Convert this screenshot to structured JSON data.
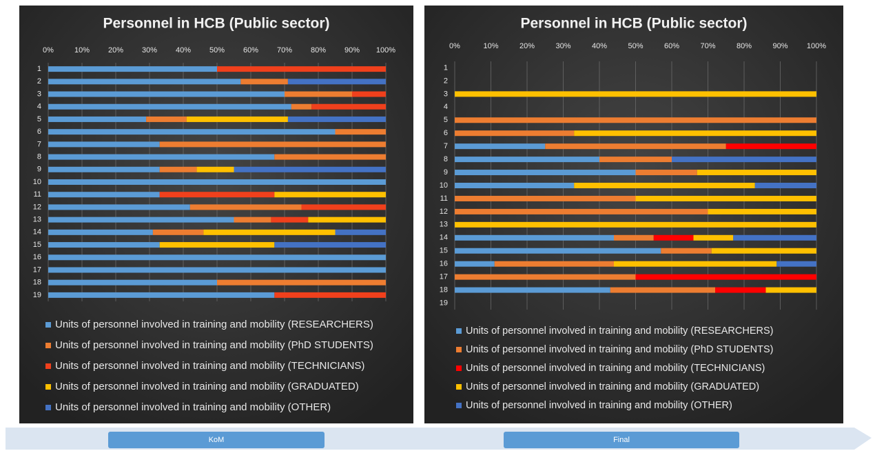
{
  "chart_data": [
    {
      "type": "bar",
      "orientation": "horizontal",
      "stacked": true,
      "title": "Personnel in HCB (Public sector)",
      "categories": [
        "1",
        "2",
        "3",
        "4",
        "5",
        "6",
        "7",
        "8",
        "9",
        "10",
        "11",
        "12",
        "13",
        "14",
        "15",
        "16",
        "17",
        "18",
        "19"
      ],
      "series": [
        {
          "name": "Units of personnel involved in training and mobility (RESEARCHERS)",
          "color": "#5b9bd5",
          "values": [
            50,
            57,
            70,
            72,
            29,
            85,
            33,
            67,
            33,
            100,
            33,
            42,
            55,
            31,
            33,
            100,
            100,
            50,
            67
          ]
        },
        {
          "name": "Units of personnel involved in training and mobility (PhD STUDENTS)",
          "color": "#ed7d31",
          "values": [
            0,
            14,
            20,
            6,
            12,
            15,
            67,
            33,
            11,
            0,
            0,
            33,
            11,
            15,
            0,
            0,
            0,
            50,
            0
          ]
        },
        {
          "name": "Units of personnel involved in training and mobility (TECHNICIANS)",
          "color": "#f0401c",
          "values": [
            50,
            0,
            10,
            22,
            0,
            0,
            0,
            0,
            0,
            0,
            34,
            25,
            11,
            0,
            0,
            0,
            0,
            0,
            33
          ]
        },
        {
          "name": "Units of personnel involved in training and mobility (GRADUATED)",
          "color": "#ffc000",
          "values": [
            0,
            0,
            0,
            0,
            30,
            0,
            0,
            0,
            11,
            0,
            33,
            0,
            23,
            39,
            34,
            0,
            0,
            0,
            0
          ]
        },
        {
          "name": "Units of personnel involved in training and mobility (OTHER)",
          "color": "#4472c4",
          "values": [
            0,
            29,
            0,
            0,
            29,
            0,
            0,
            0,
            45,
            0,
            0,
            0,
            0,
            15,
            33,
            0,
            0,
            0,
            0
          ]
        }
      ],
      "xlim": [
        0,
        100
      ],
      "xticks": [
        {
          "value": 0,
          "label": "0%"
        },
        {
          "value": 10,
          "label": "10%"
        },
        {
          "value": 20,
          "label": "20%"
        },
        {
          "value": 30,
          "label": "30%"
        },
        {
          "value": 40,
          "label": "40%"
        },
        {
          "value": 50,
          "label": "50%"
        },
        {
          "value": 60,
          "label": "60%"
        },
        {
          "value": 70,
          "label": "70%"
        },
        {
          "value": 80,
          "label": "80%"
        },
        {
          "value": 90,
          "label": "90%"
        },
        {
          "value": 100,
          "label": "100%"
        }
      ],
      "grid": true,
      "legend": "bottom"
    },
    {
      "type": "bar",
      "orientation": "horizontal",
      "stacked": true,
      "title": "Personnel in HCB (Public sector)",
      "categories": [
        "1",
        "2",
        "3",
        "4",
        "5",
        "6",
        "7",
        "8",
        "9",
        "10",
        "11",
        "12",
        "13",
        "14",
        "15",
        "16",
        "17",
        "18",
        "19"
      ],
      "series": [
        {
          "name": "Units of personnel involved in training and mobility (RESEARCHERS)",
          "color": "#5b9bd5",
          "values": [
            0,
            0,
            0,
            0,
            0,
            0,
            25,
            40,
            50,
            33,
            0,
            0,
            0,
            44,
            57,
            11,
            0,
            43,
            0
          ]
        },
        {
          "name": "Units of personnel involved in training and mobility (PhD STUDENTS)",
          "color": "#ed7d31",
          "values": [
            0,
            0,
            0,
            0,
            100,
            33,
            50,
            20,
            17,
            0,
            50,
            70,
            0,
            11,
            14,
            33,
            50,
            29,
            0
          ]
        },
        {
          "name": "Units of personnel involved in training and mobility (TECHNICIANS)",
          "color": "#ff0000",
          "values": [
            0,
            0,
            0,
            0,
            0,
            0,
            25,
            0,
            0,
            0,
            0,
            0,
            0,
            11,
            0,
            0,
            50,
            14,
            0
          ]
        },
        {
          "name": "Units of personnel involved in training and mobility (GRADUATED)",
          "color": "#ffc000",
          "values": [
            0,
            0,
            100,
            0,
            0,
            67,
            0,
            0,
            33,
            50,
            50,
            30,
            100,
            11,
            29,
            45,
            0,
            14,
            0
          ]
        },
        {
          "name": "Units of personnel involved in training and mobility (OTHER)",
          "color": "#4472c4",
          "values": [
            0,
            0,
            0,
            0,
            0,
            0,
            0,
            40,
            0,
            17,
            0,
            0,
            0,
            23,
            0,
            11,
            0,
            0,
            0
          ]
        }
      ],
      "xlim": [
        0,
        100
      ],
      "xticks": [
        {
          "value": 0,
          "label": "0%"
        },
        {
          "value": 10,
          "label": "10%"
        },
        {
          "value": 20,
          "label": "20%"
        },
        {
          "value": 30,
          "label": "30%"
        },
        {
          "value": 40,
          "label": "40%"
        },
        {
          "value": 50,
          "label": "50%"
        },
        {
          "value": 60,
          "label": "60%"
        },
        {
          "value": 70,
          "label": "70%"
        },
        {
          "value": 80,
          "label": "80%"
        },
        {
          "value": 90,
          "label": "90%"
        },
        {
          "value": 100,
          "label": "100%"
        }
      ],
      "grid": true,
      "legend": "bottom"
    }
  ],
  "stages": [
    "KoM",
    "Final"
  ]
}
